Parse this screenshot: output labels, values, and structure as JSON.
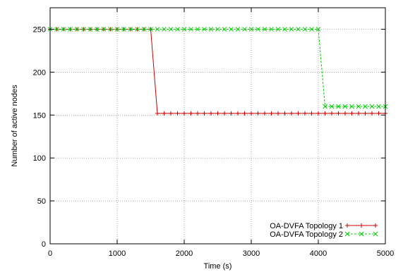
{
  "chart_data": {
    "type": "line",
    "title": "",
    "xlabel": "Time (s)",
    "ylabel": "Number of active nodes",
    "xlim": [
      0,
      5000
    ],
    "ylim": [
      0,
      275
    ],
    "xticks": [
      0,
      1000,
      2000,
      3000,
      4000,
      5000
    ],
    "yticks": [
      0,
      50,
      100,
      150,
      200,
      250
    ],
    "grid": true,
    "legend_position": "bottom-right",
    "series": [
      {
        "name": "OA-DVFA Topology 1",
        "color": "#cc0000",
        "marker": "plus",
        "line_style": "solid",
        "x": [
          0,
          100,
          200,
          300,
          400,
          500,
          600,
          700,
          800,
          900,
          1000,
          1100,
          1200,
          1300,
          1400,
          1500,
          1600,
          1700,
          1800,
          1900,
          2000,
          2100,
          2200,
          2300,
          2400,
          2500,
          2600,
          2700,
          2800,
          2900,
          3000,
          3100,
          3200,
          3300,
          3400,
          3500,
          3600,
          3700,
          3800,
          3900,
          4000,
          4100,
          4200,
          4300,
          4400,
          4500,
          4600,
          4700,
          4800,
          4900,
          5000
        ],
        "y": [
          250,
          250,
          250,
          250,
          250,
          250,
          250,
          250,
          250,
          250,
          250,
          250,
          250,
          250,
          250,
          250,
          152,
          152,
          152,
          152,
          152,
          152,
          152,
          152,
          152,
          152,
          152,
          152,
          152,
          152,
          152,
          152,
          152,
          152,
          152,
          152,
          152,
          152,
          152,
          152,
          152,
          152,
          152,
          152,
          152,
          152,
          152,
          152,
          152,
          152,
          152
        ]
      },
      {
        "name": "OA-DVFA Topology 2",
        "color": "#00cc00",
        "marker": "x",
        "line_style": "dashed",
        "x": [
          0,
          100,
          200,
          300,
          400,
          500,
          600,
          700,
          800,
          900,
          1000,
          1100,
          1200,
          1300,
          1400,
          1500,
          1600,
          1700,
          1800,
          1900,
          2000,
          2100,
          2200,
          2300,
          2400,
          2500,
          2600,
          2700,
          2800,
          2900,
          3000,
          3100,
          3200,
          3300,
          3400,
          3500,
          3600,
          3700,
          3800,
          3900,
          4000,
          4100,
          4200,
          4300,
          4400,
          4500,
          4600,
          4700,
          4800,
          4900,
          5000
        ],
        "y": [
          250,
          250,
          250,
          250,
          250,
          250,
          250,
          250,
          250,
          250,
          250,
          250,
          250,
          250,
          250,
          250,
          250,
          250,
          250,
          250,
          250,
          250,
          250,
          250,
          250,
          250,
          250,
          250,
          250,
          250,
          250,
          250,
          250,
          250,
          250,
          250,
          250,
          250,
          250,
          250,
          250,
          160,
          160,
          160,
          160,
          160,
          160,
          160,
          160,
          160,
          160
        ]
      }
    ]
  }
}
